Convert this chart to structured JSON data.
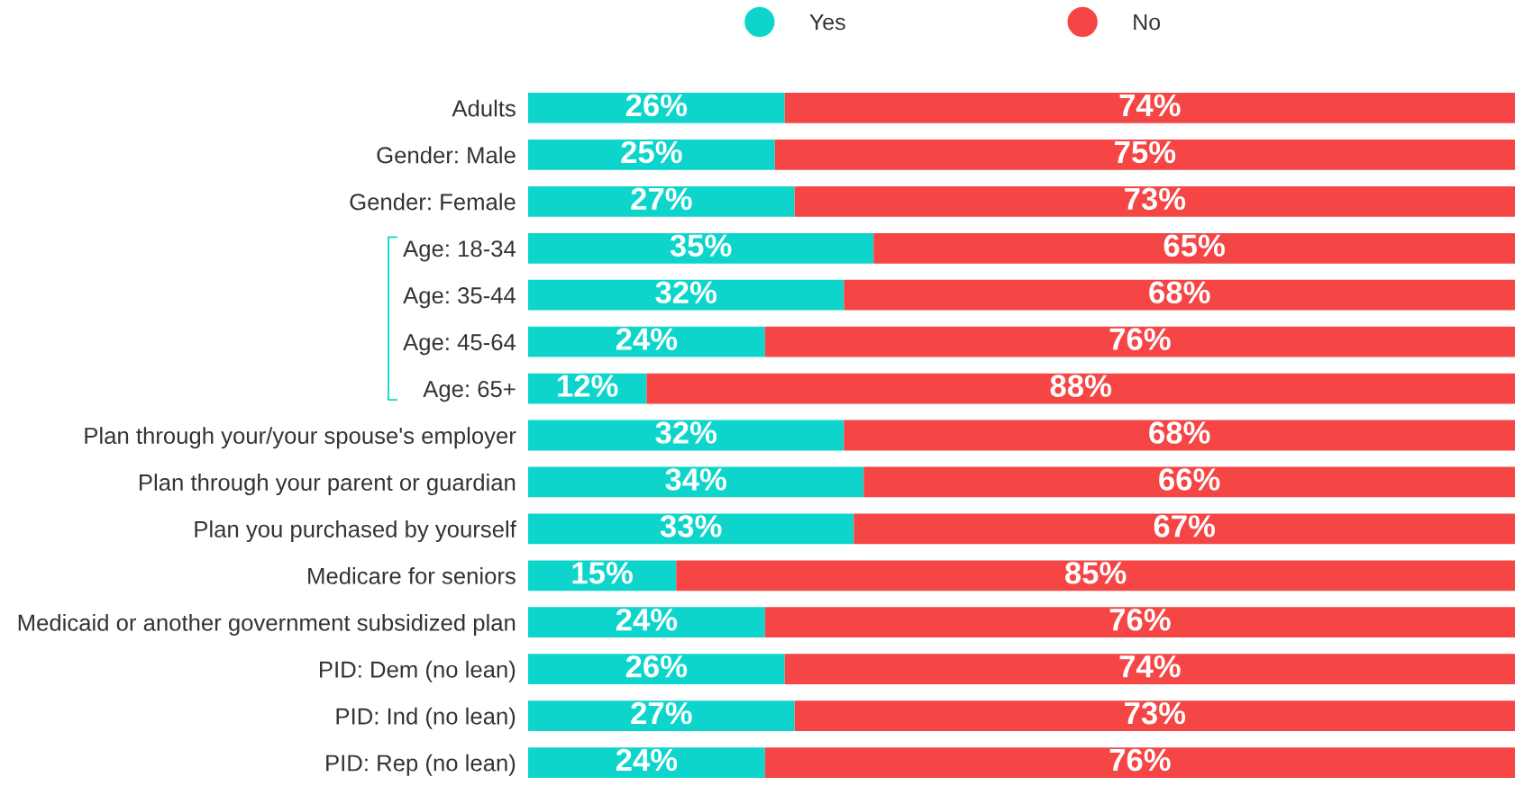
{
  "chart_data": {
    "type": "bar",
    "orientation": "horizontal",
    "stacked": true,
    "categories": [
      "Adults",
      "Gender: Male",
      "Gender: Female",
      "Age: 18-34",
      "Age: 35-44",
      "Age: 45-64",
      "Age: 65+",
      "Plan through your/your spouse's employer",
      "Plan through your parent or guardian",
      "Plan you purchased by yourself",
      "Medicare for seniors",
      "Medicaid or another government subsidized plan",
      "PID: Dem (no lean)",
      "PID: Ind (no lean)",
      "PID: Rep (no lean)"
    ],
    "series": [
      {
        "name": "Yes",
        "color": "#0dd5cc",
        "values": [
          26,
          25,
          27,
          35,
          32,
          24,
          12,
          32,
          34,
          33,
          15,
          24,
          26,
          27,
          24
        ],
        "value_labels": [
          "26%",
          "25%",
          "27%",
          "35%",
          "32%",
          "24%",
          "12%",
          "32%",
          "34%",
          "33%",
          "15%",
          "24%",
          "26%",
          "27%",
          "24%"
        ]
      },
      {
        "name": "No",
        "color": "#f54545",
        "values": [
          74,
          75,
          73,
          65,
          68,
          76,
          88,
          68,
          66,
          67,
          85,
          76,
          74,
          73,
          76
        ],
        "value_labels": [
          "74%",
          "75%",
          "73%",
          "65%",
          "68%",
          "76%",
          "88%",
          "68%",
          "66%",
          "67%",
          "85%",
          "76%",
          "74%",
          "73%",
          "76%"
        ]
      }
    ],
    "xlim": [
      0,
      100
    ],
    "tick_labels": "y",
    "legend": "top"
  }
}
